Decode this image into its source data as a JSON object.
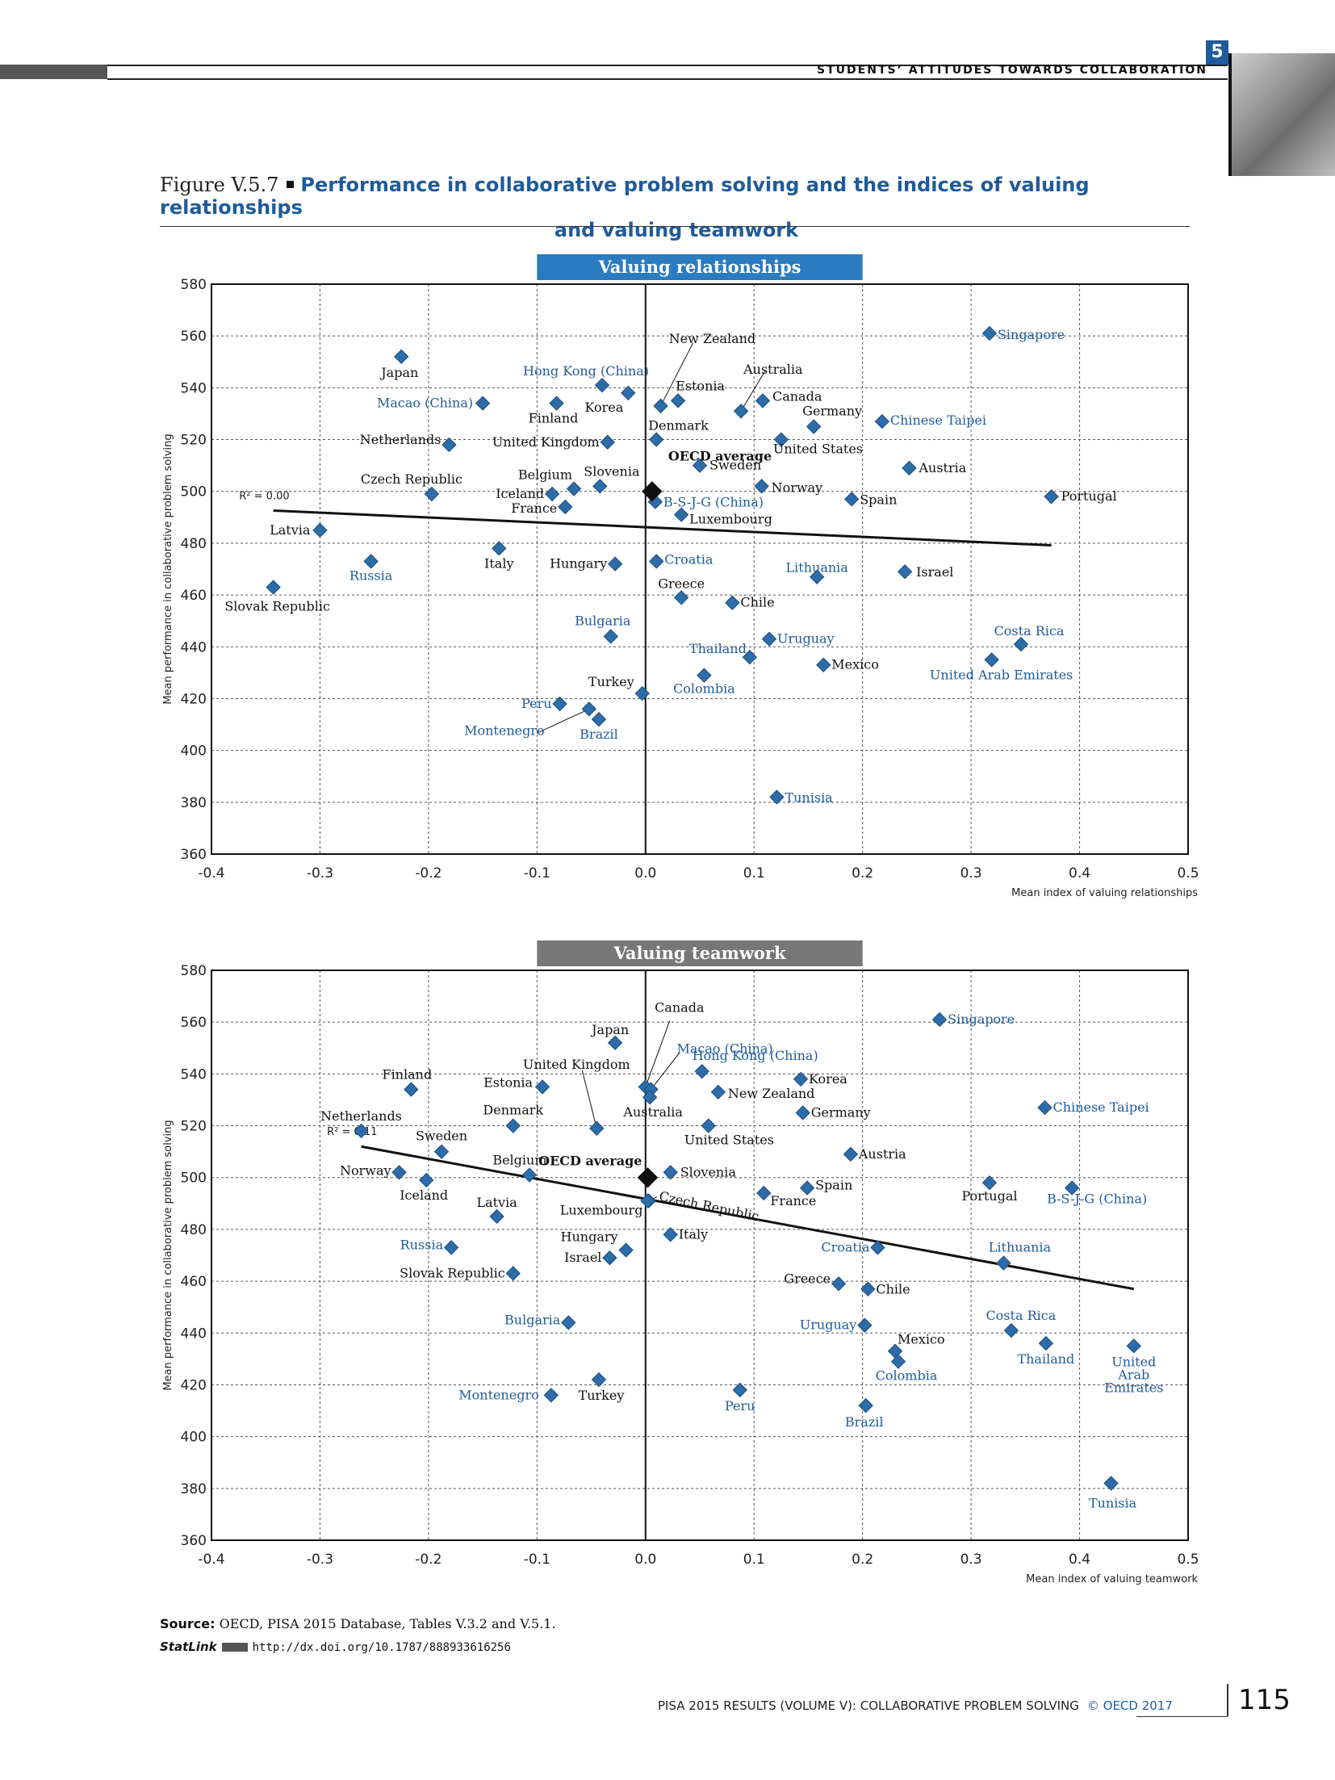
{
  "header": {
    "chapter_number": "5",
    "chapter_title": "STUDENTS’ ATTITUDES TOWARDS COLLABORATION"
  },
  "figure": {
    "label": "Figure V.5.7",
    "title_line1": "Performance in collaborative problem solving and the indices of valuing relationships",
    "title_line2": "and valuing teamwork"
  },
  "colors": {
    "marker": "#2e6ca8",
    "partner": "#1f5b9a",
    "oecd": "#111111",
    "panel1_banner": "#2b7bc0",
    "panel2_banner": "#777777"
  },
  "chart_data": [
    {
      "type": "scatter",
      "title": "Valuing relationships",
      "xlabel": "Mean index of valuing relationships",
      "ylabel": "Mean performance in collaborative problem solving",
      "xlim": [
        -0.4,
        0.5
      ],
      "ylim": [
        360,
        580
      ],
      "x_ticks": [
        "-0.4",
        "-0.3",
        "-0.2",
        "-0.1",
        "0.0",
        "0.1",
        "0.2",
        "0.3",
        "0.4",
        "0.5"
      ],
      "y_ticks": [
        "360",
        "380",
        "400",
        "420",
        "440",
        "460",
        "480",
        "500",
        "520",
        "540",
        "560",
        "580"
      ],
      "grid": true,
      "r2": "R² = 0.00",
      "trendline": [
        [
          -0.343,
          492.6
        ],
        [
          0.374,
          479.2
        ]
      ],
      "oecd_average": {
        "label": "OECD average",
        "x": 0.006,
        "y": 500
      },
      "points": [
        {
          "name": "Singapore",
          "x": 0.317,
          "y": 561,
          "partner": true
        },
        {
          "name": "Japan",
          "x": -0.225,
          "y": 552,
          "partner": false
        },
        {
          "name": "Hong Kong (China)",
          "x": -0.04,
          "y": 541,
          "partner": true
        },
        {
          "name": "New Zealand",
          "x": 0.014,
          "y": 533,
          "partner": false
        },
        {
          "name": "Australia",
          "x": 0.088,
          "y": 531,
          "partner": false
        },
        {
          "name": "Estonia",
          "x": 0.03,
          "y": 535,
          "partner": false
        },
        {
          "name": "Korea",
          "x": -0.016,
          "y": 538,
          "partner": false
        },
        {
          "name": "Macao (China)",
          "x": -0.15,
          "y": 534,
          "partner": true
        },
        {
          "name": "Finland",
          "x": -0.082,
          "y": 534,
          "partner": false
        },
        {
          "name": "Canada",
          "x": 0.108,
          "y": 535,
          "partner": false
        },
        {
          "name": "Germany",
          "x": 0.155,
          "y": 525,
          "partner": false
        },
        {
          "name": "Chinese Taipei",
          "x": 0.218,
          "y": 527,
          "partner": true
        },
        {
          "name": "Netherlands",
          "x": -0.181,
          "y": 518,
          "partner": false
        },
        {
          "name": "United Kingdom",
          "x": -0.035,
          "y": 519,
          "partner": false
        },
        {
          "name": "Denmark",
          "x": 0.01,
          "y": 520,
          "partner": false
        },
        {
          "name": "United States",
          "x": 0.125,
          "y": 520,
          "partner": false
        },
        {
          "name": "Sweden",
          "x": 0.05,
          "y": 510,
          "partner": false
        },
        {
          "name": "Austria",
          "x": 0.243,
          "y": 509,
          "partner": false
        },
        {
          "name": "Czech Republic",
          "x": -0.197,
          "y": 499,
          "partner": false
        },
        {
          "name": "Belgium",
          "x": -0.066,
          "y": 501,
          "partner": false
        },
        {
          "name": "Slovenia",
          "x": -0.042,
          "y": 502,
          "partner": false
        },
        {
          "name": "Iceland",
          "x": -0.086,
          "y": 499,
          "partner": false
        },
        {
          "name": "France",
          "x": -0.074,
          "y": 494,
          "partner": false
        },
        {
          "name": "Norway",
          "x": 0.107,
          "y": 502,
          "partner": false
        },
        {
          "name": "B-S-J-G (China)",
          "x": 0.009,
          "y": 496,
          "partner": true
        },
        {
          "name": "Luxembourg",
          "x": 0.033,
          "y": 491,
          "partner": false
        },
        {
          "name": "Spain",
          "x": 0.19,
          "y": 497,
          "partner": false
        },
        {
          "name": "Portugal",
          "x": 0.374,
          "y": 498,
          "partner": false
        },
        {
          "name": "Latvia",
          "x": -0.3,
          "y": 485,
          "partner": false
        },
        {
          "name": "Italy",
          "x": -0.135,
          "y": 478,
          "partner": false
        },
        {
          "name": "Russia",
          "x": -0.253,
          "y": 473,
          "partner": true
        },
        {
          "name": "Hungary",
          "x": -0.028,
          "y": 472,
          "partner": false
        },
        {
          "name": "Croatia",
          "x": 0.01,
          "y": 473,
          "partner": true
        },
        {
          "name": "Lithuania",
          "x": 0.158,
          "y": 467,
          "partner": true
        },
        {
          "name": "Israel",
          "x": 0.239,
          "y": 469,
          "partner": false
        },
        {
          "name": "Slovak Republic",
          "x": -0.343,
          "y": 463,
          "partner": false
        },
        {
          "name": "Greece",
          "x": 0.033,
          "y": 459,
          "partner": false
        },
        {
          "name": "Chile",
          "x": 0.08,
          "y": 457,
          "partner": false
        },
        {
          "name": "Bulgaria",
          "x": -0.032,
          "y": 444,
          "partner": true
        },
        {
          "name": "Uruguay",
          "x": 0.114,
          "y": 443,
          "partner": true
        },
        {
          "name": "Costa Rica",
          "x": 0.346,
          "y": 441,
          "partner": true
        },
        {
          "name": "Thailand",
          "x": 0.096,
          "y": 436,
          "partner": true
        },
        {
          "name": "Mexico",
          "x": 0.164,
          "y": 433,
          "partner": false
        },
        {
          "name": "United Arab Emirates",
          "x": 0.319,
          "y": 435,
          "partner": true
        },
        {
          "name": "Colombia",
          "x": 0.054,
          "y": 429,
          "partner": true
        },
        {
          "name": "Turkey",
          "x": -0.003,
          "y": 422,
          "partner": false
        },
        {
          "name": "Peru",
          "x": -0.079,
          "y": 418,
          "partner": true
        },
        {
          "name": "Montenegro",
          "x": -0.052,
          "y": 416,
          "partner": true
        },
        {
          "name": "Brazil",
          "x": -0.043,
          "y": 412,
          "partner": true
        },
        {
          "name": "Tunisia",
          "x": 0.121,
          "y": 382,
          "partner": true
        }
      ]
    },
    {
      "type": "scatter",
      "title": "Valuing teamwork",
      "xlabel": "Mean index of valuing teamwork",
      "ylabel": "Mean performance in collaborative problem solving",
      "xlim": [
        -0.4,
        0.5
      ],
      "ylim": [
        360,
        580
      ],
      "x_ticks": [
        "-0.4",
        "-0.3",
        "-0.2",
        "-0.1",
        "0.0",
        "0.1",
        "0.2",
        "0.3",
        "0.4",
        "0.5"
      ],
      "y_ticks": [
        "360",
        "380",
        "400",
        "420",
        "440",
        "460",
        "480",
        "500",
        "520",
        "540",
        "560",
        "580"
      ],
      "grid": true,
      "r2": "R² = 0.11",
      "trendline": [
        [
          -0.262,
          512
        ],
        [
          0.45,
          457
        ]
      ],
      "oecd_average": {
        "label": "OECD average",
        "x": 0.002,
        "y": 500
      },
      "points": [
        {
          "name": "Singapore",
          "x": 0.271,
          "y": 561,
          "partner": true
        },
        {
          "name": "Japan",
          "x": -0.028,
          "y": 552,
          "partner": false
        },
        {
          "name": "Canada",
          "x": 0.0,
          "y": 535,
          "partner": false
        },
        {
          "name": "Macao (China)",
          "x": 0.005,
          "y": 534,
          "partner": true
        },
        {
          "name": "Hong Kong (China)",
          "x": 0.052,
          "y": 541,
          "partner": true
        },
        {
          "name": "Australia",
          "x": 0.004,
          "y": 531,
          "partner": false
        },
        {
          "name": "New Zealand",
          "x": 0.067,
          "y": 533,
          "partner": false
        },
        {
          "name": "Korea",
          "x": 0.143,
          "y": 538,
          "partner": false
        },
        {
          "name": "Finland",
          "x": -0.216,
          "y": 534,
          "partner": false
        },
        {
          "name": "United Kingdom",
          "x": -0.045,
          "y": 519,
          "partner": false
        },
        {
          "name": "Estonia",
          "x": -0.095,
          "y": 535,
          "partner": false
        },
        {
          "name": "Germany",
          "x": 0.145,
          "y": 525,
          "partner": false
        },
        {
          "name": "Chinese Taipei",
          "x": 0.368,
          "y": 527,
          "partner": true
        },
        {
          "name": "Netherlands",
          "x": -0.262,
          "y": 518,
          "partner": false
        },
        {
          "name": "Denmark",
          "x": -0.122,
          "y": 520,
          "partner": false
        },
        {
          "name": "United States",
          "x": 0.058,
          "y": 520,
          "partner": false
        },
        {
          "name": "Sweden",
          "x": -0.188,
          "y": 510,
          "partner": false
        },
        {
          "name": "Austria",
          "x": 0.189,
          "y": 509,
          "partner": false
        },
        {
          "name": "Norway",
          "x": -0.227,
          "y": 502,
          "partner": false
        },
        {
          "name": "Belgium",
          "x": -0.107,
          "y": 501,
          "partner": false
        },
        {
          "name": "Slovenia",
          "x": 0.023,
          "y": 502,
          "partner": false
        },
        {
          "name": "Iceland",
          "x": -0.202,
          "y": 499,
          "partner": false
        },
        {
          "name": "Czech Republic",
          "x": 0.003,
          "y": 491,
          "partner": false
        },
        {
          "name": "Luxembourg",
          "x": 0.002,
          "y": 491,
          "partner": false
        },
        {
          "name": "France",
          "x": 0.109,
          "y": 494,
          "partner": false
        },
        {
          "name": "Spain",
          "x": 0.149,
          "y": 496,
          "partner": false
        },
        {
          "name": "Portugal",
          "x": 0.317,
          "y": 498,
          "partner": false
        },
        {
          "name": "B-S-J-G (China)",
          "x": 0.393,
          "y": 496,
          "partner": true
        },
        {
          "name": "Latvia",
          "x": -0.137,
          "y": 485,
          "partner": false
        },
        {
          "name": "Italy",
          "x": 0.023,
          "y": 478,
          "partner": false
        },
        {
          "name": "Russia",
          "x": -0.179,
          "y": 473,
          "partner": true
        },
        {
          "name": "Hungary",
          "x": -0.018,
          "y": 472,
          "partner": false
        },
        {
          "name": "Israel",
          "x": -0.033,
          "y": 469,
          "partner": false
        },
        {
          "name": "Croatia",
          "x": 0.214,
          "y": 473,
          "partner": true
        },
        {
          "name": "Lithuania",
          "x": 0.33,
          "y": 467,
          "partner": true
        },
        {
          "name": "Slovak Republic",
          "x": -0.122,
          "y": 463,
          "partner": false
        },
        {
          "name": "Greece",
          "x": 0.178,
          "y": 459,
          "partner": false
        },
        {
          "name": "Chile",
          "x": 0.205,
          "y": 457,
          "partner": false
        },
        {
          "name": "Bulgaria",
          "x": -0.071,
          "y": 444,
          "partner": true
        },
        {
          "name": "Uruguay",
          "x": 0.202,
          "y": 443,
          "partner": true
        },
        {
          "name": "Costa Rica",
          "x": 0.337,
          "y": 441,
          "partner": true
        },
        {
          "name": "Mexico",
          "x": 0.23,
          "y": 433,
          "partner": false
        },
        {
          "name": "Colombia",
          "x": 0.233,
          "y": 429,
          "partner": true
        },
        {
          "name": "Thailand",
          "x": 0.369,
          "y": 436,
          "partner": true
        },
        {
          "name": "United Arab Emirates",
          "x": 0.45,
          "y": 435,
          "partner": true
        },
        {
          "name": "Turkey",
          "x": -0.043,
          "y": 422,
          "partner": false
        },
        {
          "name": "Montenegro",
          "x": -0.087,
          "y": 416,
          "partner": true
        },
        {
          "name": "Peru",
          "x": 0.087,
          "y": 418,
          "partner": true
        },
        {
          "name": "Brazil",
          "x": 0.203,
          "y": 412,
          "partner": true
        },
        {
          "name": "Tunisia",
          "x": 0.429,
          "y": 382,
          "partner": true
        }
      ]
    }
  ],
  "source": {
    "label": "Source:",
    "text": " OECD, PISA 2015 Database, Tables V.3.2 and V.5.1.",
    "statlink_label": "StatLink",
    "statlink_url": "http://dx.doi.org/10.1787/888933616256"
  },
  "footer": {
    "book": "PISA 2015 RESULTS (VOLUME V): COLLABORATIVE PROBLEM SOLVING",
    "copyright": "© OECD 2017",
    "page": "115"
  }
}
